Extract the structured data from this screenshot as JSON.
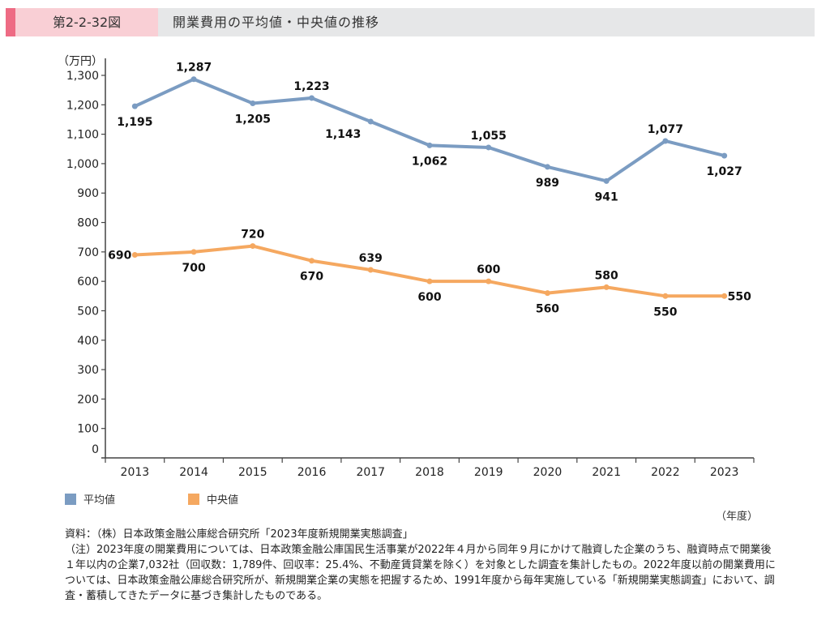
{
  "header": {
    "figure_number": "第2-2-32図",
    "title": "開業費用の平均値・中央値の推移",
    "accent_color": "#ee6b84",
    "label_bg_color": "#f9cfd5",
    "bar_bg_color": "#e6e7e8"
  },
  "chart_data": {
    "type": "line",
    "title": "開業費用の平均値・中央値の推移",
    "xlabel": "（年度）",
    "ylabel": "（万円）",
    "categories": [
      "2013",
      "2014",
      "2015",
      "2016",
      "2017",
      "2018",
      "2019",
      "2020",
      "2021",
      "2022",
      "2023"
    ],
    "ylim": [
      0,
      1300
    ],
    "yticks": [
      0,
      100,
      200,
      300,
      400,
      500,
      600,
      700,
      800,
      900,
      1000,
      1100,
      1200,
      1300
    ],
    "ytick_labels": [
      "0",
      "100",
      "200",
      "300",
      "400",
      "500",
      "600",
      "700",
      "800",
      "900",
      "1,000",
      "1,100",
      "1,200",
      "1,300"
    ],
    "grid": false,
    "legend_position": "bottom-left",
    "series": [
      {
        "name": "平均値",
        "color": "#7b9cc2",
        "values": [
          1195,
          1287,
          1205,
          1223,
          1143,
          1062,
          1055,
          989,
          941,
          1077,
          1027
        ],
        "labels": [
          "1,195",
          "1,287",
          "1,205",
          "1,223",
          "1,143",
          "1,062",
          "1,055",
          "989",
          "941",
          "1,077",
          "1,027"
        ],
        "label_positions": [
          "below",
          "above",
          "below",
          "above",
          "below-left",
          "below",
          "above",
          "below",
          "below",
          "above",
          "below"
        ]
      },
      {
        "name": "中央値",
        "color": "#f5a860",
        "values": [
          690,
          700,
          720,
          670,
          639,
          600,
          600,
          560,
          580,
          550,
          550
        ],
        "labels": [
          "690",
          "700",
          "720",
          "670",
          "639",
          "600",
          "600",
          "560",
          "580",
          "550",
          "550"
        ],
        "label_positions": [
          "left",
          "below",
          "above",
          "below",
          "above",
          "below",
          "above",
          "below",
          "above",
          "below",
          "right"
        ]
      }
    ]
  },
  "legend": {
    "items": [
      {
        "label": "平均値",
        "color": "#7b9cc2"
      },
      {
        "label": "中央値",
        "color": "#f5a860"
      }
    ]
  },
  "notes": {
    "source": "資料：（株）日本政策金融公庫総合研究所「2023年度新規開業実態調査」",
    "note": "（注）2023年度の開業費用については、日本政策金融公庫国民生活事業が2022年４月から同年９月にかけて融資した企業のうち、融資時点で開業後１年以内の企業7,032社（回収数：1,789件、回収率：25.4%、不動産賃貸業を除く）を対象とした調査を集計したもの。2022年度以前の開業費用については、日本政策金融公庫総合研究所が、新規開業企業の実態を把握するため、1991年度から毎年実施している「新規開業実態調査」において、調査・蓄積してきたデータに基づき集計したものである。"
  }
}
